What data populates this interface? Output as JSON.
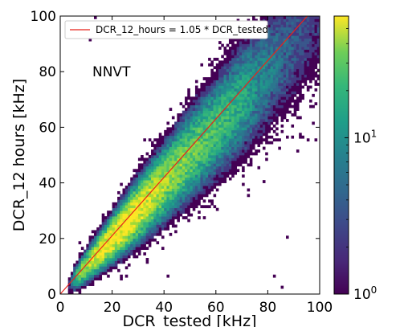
{
  "chart_data": {
    "type": "heatmap",
    "subtype": "2d-histogram",
    "xlabel": "DCR_tested [kHz]",
    "ylabel": "DCR_12 hours [kHz]",
    "xlim": [
      0,
      100
    ],
    "ylim": [
      0,
      100
    ],
    "xticks": [
      0,
      20,
      40,
      60,
      80,
      100
    ],
    "yticks": [
      0,
      20,
      40,
      60,
      80,
      100
    ],
    "annotation": "NNVT",
    "legend": {
      "position": "top",
      "entries": [
        {
          "label": "DCR_12_hours = 1.05 * DCR_tested",
          "color": "#e8231b"
        }
      ]
    },
    "fit_line": {
      "slope": 1.05,
      "intercept": 0,
      "color": "#e8231b"
    },
    "bins": 100,
    "density_model": {
      "description": "Counts concentrated along y ≈ 1.05·x, densest near x = 18–35 kHz, spreading with increasing x; a few sparse outliers.",
      "ridge_slope": 1.0,
      "peak_x": 22,
      "max_count": 60
    },
    "colorbar": {
      "scale": "log",
      "colormap": "viridis",
      "range": [
        1,
        60
      ],
      "tick_labels": [
        {
          "value": 1,
          "base": "10",
          "exp": "0"
        },
        {
          "value": 10,
          "base": "10",
          "exp": "1"
        }
      ]
    },
    "grid": false
  }
}
